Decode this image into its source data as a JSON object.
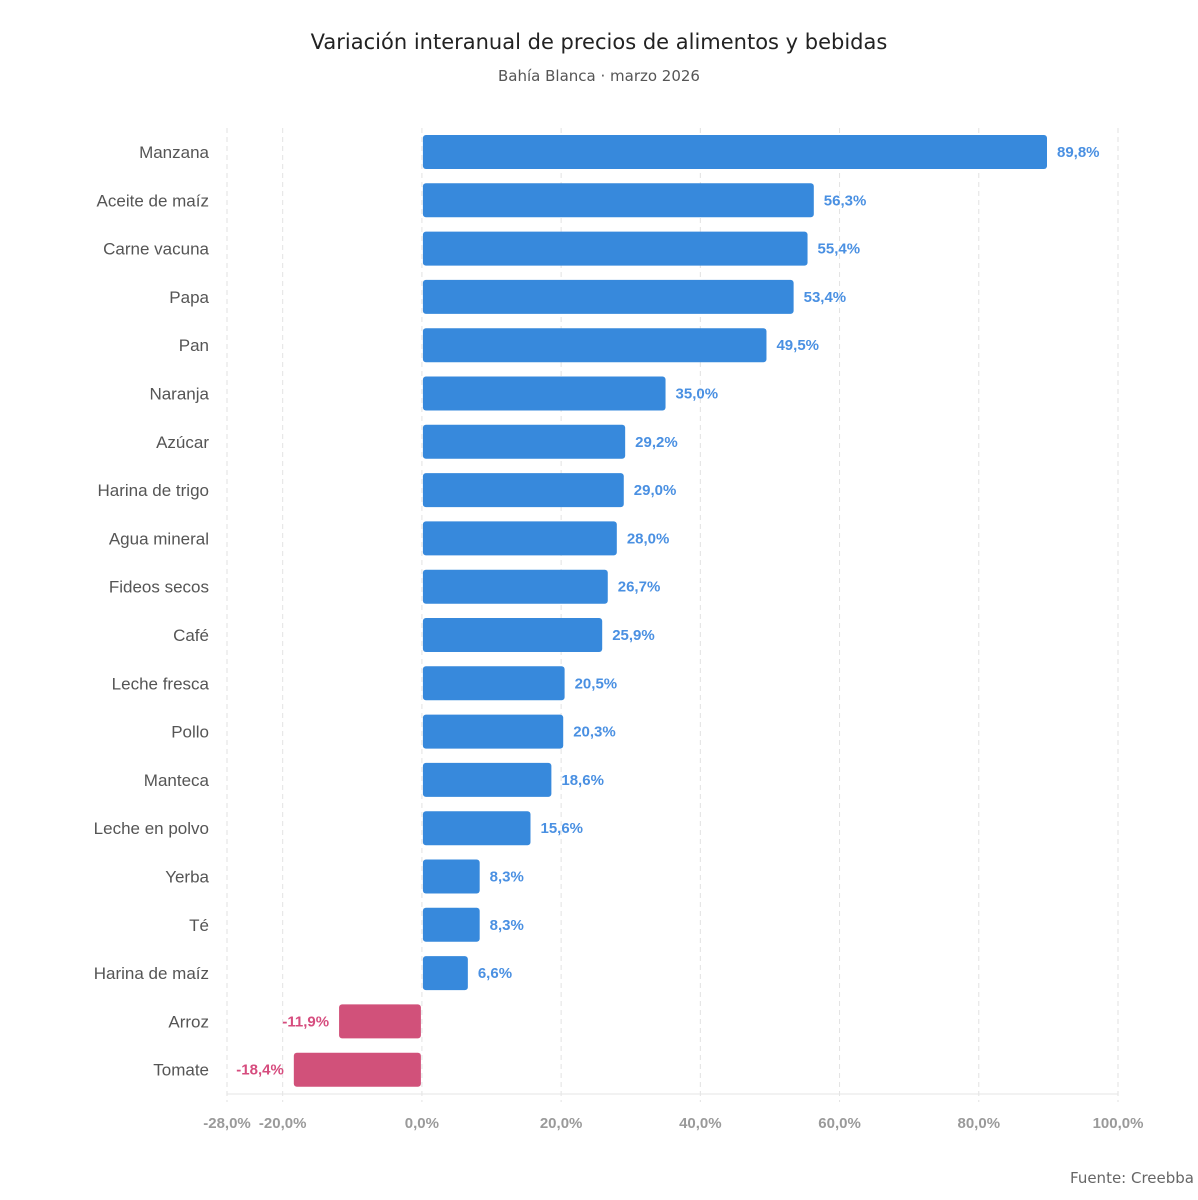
{
  "header": {
    "title": "Variación interanual de precios de alimentos y bebidas",
    "subtitle": "Bahía Blanca · marzo 2026"
  },
  "footer": {
    "source": "Fuente: Creebba"
  },
  "colors": {
    "positive": "#3789dc",
    "negative": "#d1517a",
    "positive_label": "#4a90e2",
    "negative_label": "#d64c7e",
    "grid": "#e2e2e2"
  },
  "chart_data": {
    "type": "bar",
    "orientation": "horizontal",
    "title": "Variación interanual de precios de alimentos y bebidas",
    "subtitle": "Bahía Blanca · marzo 2026",
    "xlabel": "",
    "ylabel": "",
    "xlim": [
      -28,
      100
    ],
    "grid": true,
    "legend": "none",
    "x_ticks": [
      -28,
      -20,
      0,
      20,
      40,
      60,
      80,
      100
    ],
    "x_tick_labels": [
      "-28,0%",
      "-20,0%",
      "0,0%",
      "20,0%",
      "40,0%",
      "60,0%",
      "80,0%",
      "100,0%"
    ],
    "categories": [
      "Manzana",
      "Aceite de maíz",
      "Carne vacuna",
      "Papa",
      "Pan",
      "Naranja",
      "Azúcar",
      "Harina de trigo",
      "Agua mineral",
      "Fideos secos",
      "Café",
      "Leche fresca",
      "Pollo",
      "Manteca",
      "Leche en polvo",
      "Yerba",
      "Té",
      "Harina de maíz",
      "Arroz",
      "Tomate"
    ],
    "values": [
      89.8,
      56.3,
      55.4,
      53.4,
      49.5,
      35.0,
      29.2,
      29.0,
      28.0,
      26.7,
      25.9,
      20.5,
      20.3,
      18.6,
      15.6,
      8.3,
      8.3,
      6.6,
      -11.9,
      -18.4
    ],
    "value_labels": [
      "89,8%",
      "56,3%",
      "55,4%",
      "53,4%",
      "49,5%",
      "35,0%",
      "29,2%",
      "29,0%",
      "28,0%",
      "26,7%",
      "25,9%",
      "20,5%",
      "20,3%",
      "18,6%",
      "15,6%",
      "8,3%",
      "8,3%",
      "6,6%",
      "-11,9%",
      "-18,4%"
    ],
    "source": "Fuente: Creebba"
  }
}
